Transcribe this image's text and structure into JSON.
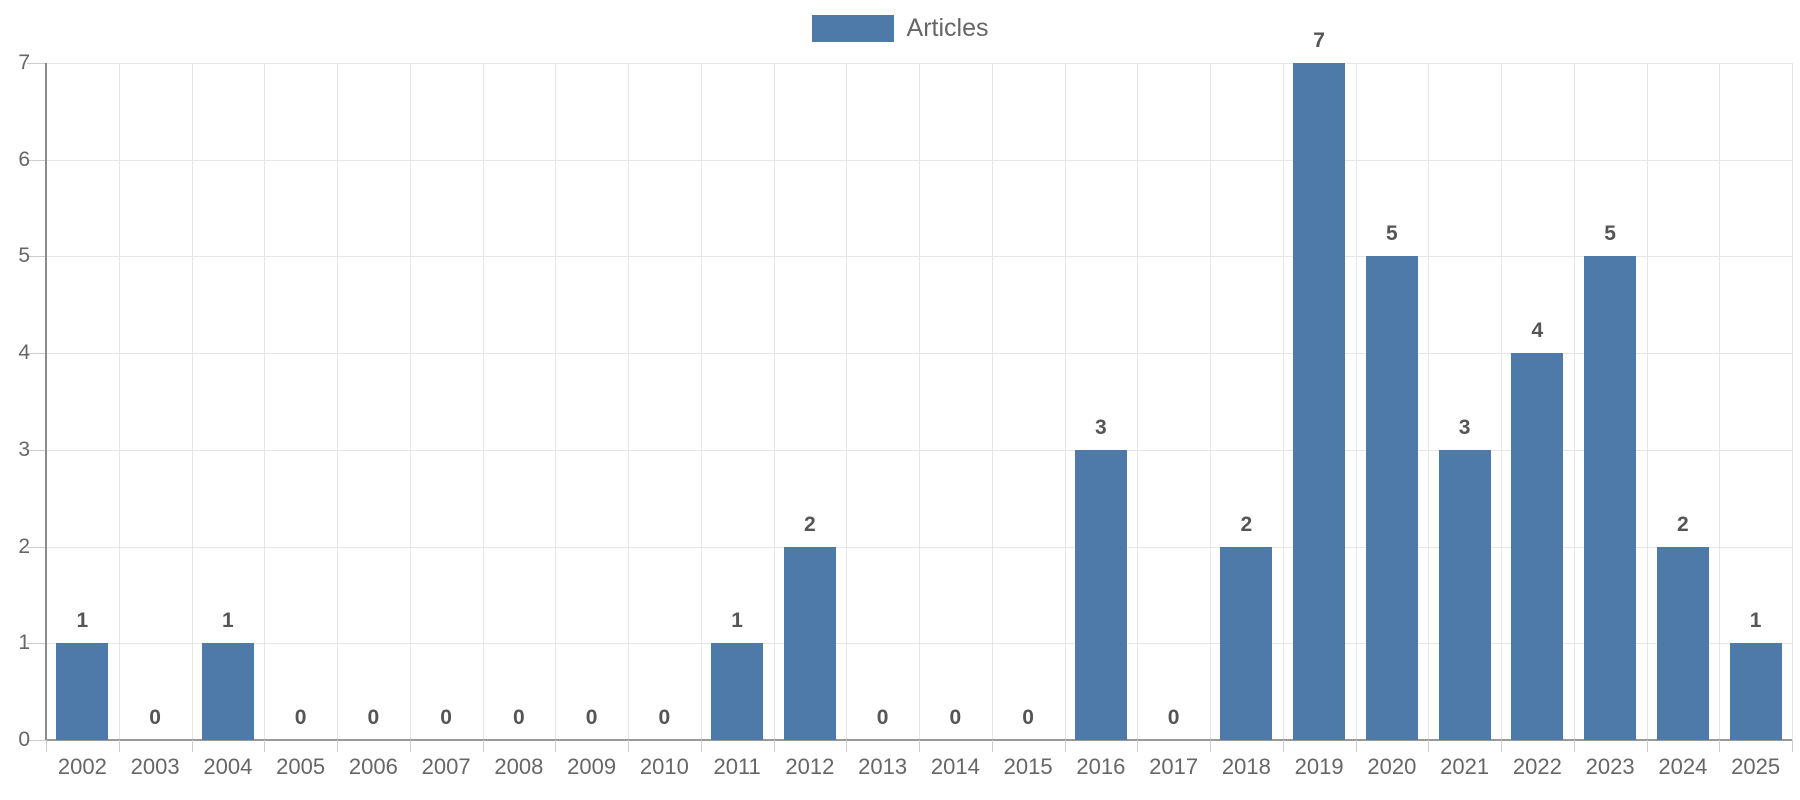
{
  "legend": {
    "label": "Articles"
  },
  "colors": {
    "bar": "#4d7aa8",
    "grid": "#e6e6e6",
    "axis": "#999999",
    "axis_line_left": "#8a8a8a",
    "tick": "#cccccc",
    "axis_label": "#666666",
    "data_label": "#555555",
    "legend_text": "#666666",
    "background": "#ffffff"
  },
  "chart_data": {
    "type": "bar",
    "title": "",
    "xlabel": "",
    "ylabel": "",
    "categories": [
      "2002",
      "2003",
      "2004",
      "2005",
      "2006",
      "2007",
      "2008",
      "2009",
      "2010",
      "2011",
      "2012",
      "2013",
      "2014",
      "2015",
      "2016",
      "2017",
      "2018",
      "2019",
      "2020",
      "2021",
      "2022",
      "2023",
      "2024",
      "2025"
    ],
    "series": [
      {
        "name": "Articles",
        "values": [
          1,
          0,
          1,
          0,
          0,
          0,
          0,
          0,
          0,
          1,
          2,
          0,
          0,
          0,
          3,
          0,
          2,
          7,
          5,
          3,
          4,
          5,
          2,
          1
        ]
      }
    ],
    "data_labels": [
      1,
      0,
      1,
      0,
      0,
      0,
      0,
      0,
      0,
      1,
      2,
      0,
      0,
      0,
      3,
      0,
      2,
      7,
      5,
      3,
      4,
      5,
      2,
      1
    ],
    "ylim": [
      0,
      7
    ],
    "yticks": [
      0,
      1,
      2,
      3,
      4,
      5,
      6,
      7
    ],
    "grid": true,
    "legend_position": "top-center"
  }
}
